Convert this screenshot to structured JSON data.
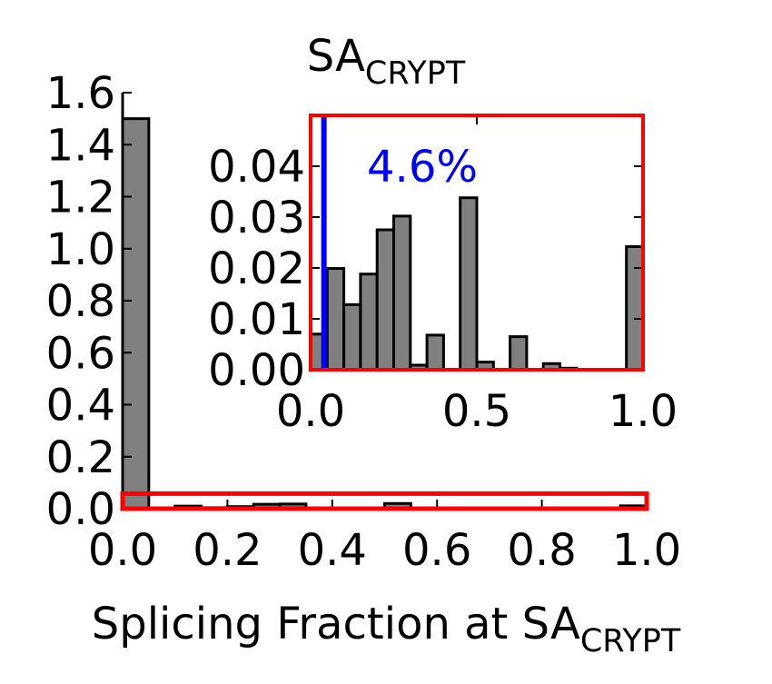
{
  "chart_data": [
    {
      "type": "bar",
      "title": "SA",
      "title_sub": "CRYPT",
      "xlabel": "Splicing Fraction at SA",
      "xlabel_sub": "CRYPT",
      "ylabel": "",
      "xlim": [
        0.0,
        1.0
      ],
      "ylim": [
        0.0,
        1.6
      ],
      "xticks": [
        "0.0",
        "0.2",
        "0.4",
        "0.6",
        "0.8",
        "1.0"
      ],
      "yticks": [
        "0.0",
        "0.2",
        "0.4",
        "0.6",
        "0.8",
        "1.0",
        "1.2",
        "1.4",
        "1.6"
      ],
      "bin_edges": [
        0.0,
        0.05,
        0.1,
        0.15,
        0.2,
        0.25,
        0.3,
        0.35,
        0.4,
        0.45,
        0.5,
        0.55,
        0.6,
        0.65,
        0.7,
        0.75,
        0.8,
        0.85,
        0.9,
        0.95,
        1.0
      ],
      "values": [
        1.5,
        0.0,
        0.01,
        0.004,
        0.008,
        0.017,
        0.018,
        0.001,
        0.001,
        0.001,
        0.02,
        0.001,
        0.0,
        0.001,
        0.0,
        0.0,
        0.0,
        0.0,
        0.0,
        0.011
      ],
      "bar_color": "#808080",
      "highlight_range": [
        0.0,
        0.03
      ],
      "highlight_color": "#ff0000",
      "grid": false
    },
    {
      "type": "bar",
      "inset": true,
      "annotation": "4.6%",
      "annotation_color": "#0000ff",
      "xlim": [
        0.0,
        1.0
      ],
      "ylim": [
        0.0,
        0.05
      ],
      "xticks": [
        "0.0",
        "0.5",
        "1.0"
      ],
      "yticks": [
        "0.00",
        "0.01",
        "0.02",
        "0.03",
        "0.04"
      ],
      "bin_edges": [
        0.0,
        0.05,
        0.1,
        0.15,
        0.2,
        0.25,
        0.3,
        0.35,
        0.4,
        0.45,
        0.5,
        0.55,
        0.6,
        0.65,
        0.7,
        0.75,
        0.8,
        0.85,
        0.9,
        0.95,
        1.0
      ],
      "values": [
        0.007,
        0.0199,
        0.0128,
        0.0188,
        0.0275,
        0.0302,
        0.0009,
        0.0068,
        0.0,
        0.0338,
        0.0015,
        0.0,
        0.0065,
        0.0,
        0.0012,
        0.0003,
        0.0,
        0.0,
        0.0,
        0.0242
      ],
      "bar_color": "#808080",
      "marker_x": 0.04,
      "marker_color": "#0000ff",
      "frame_color": "#ff0000",
      "grid": false
    }
  ]
}
